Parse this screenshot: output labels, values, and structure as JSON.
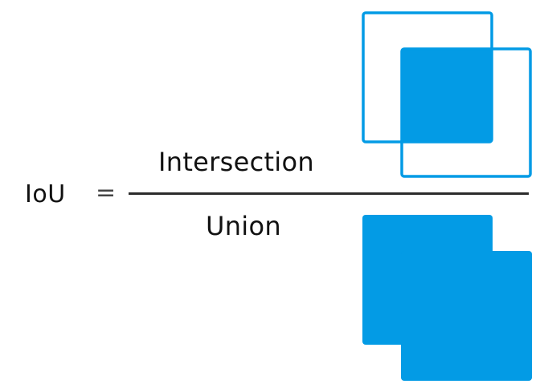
{
  "formula": {
    "lhs": "IoU",
    "equals": "=",
    "numerator": "Intersection",
    "denominator": "Union"
  },
  "colors": {
    "accent": "#039BE5",
    "text": "#111111",
    "bar": "#2B2B2B"
  }
}
